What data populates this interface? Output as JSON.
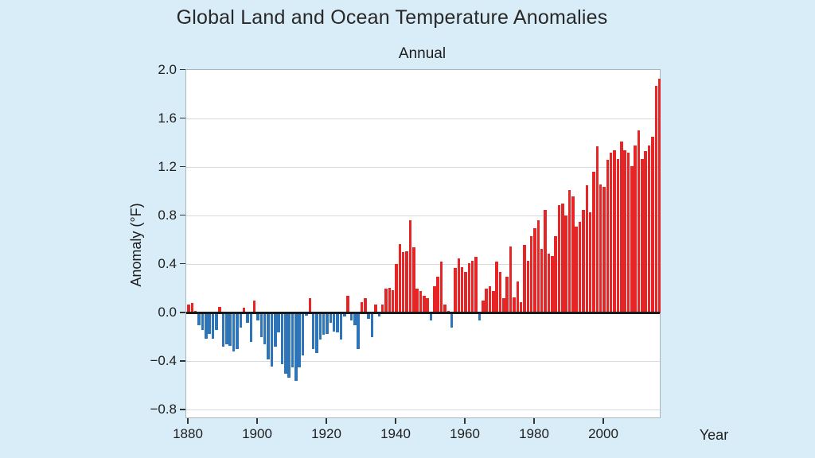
{
  "title": "Global Land and Ocean Temperature Anomalies",
  "subtitle": "Annual",
  "chart_data": {
    "type": "bar",
    "title": "Global Land and Ocean Temperature Anomalies",
    "subtitle": "Annual",
    "xlabel": "Year",
    "ylabel": "Anomaly (°F)",
    "ylim": [
      -0.86,
      2.0
    ],
    "grid": true,
    "legend": "none",
    "y_ticks": [
      2.0,
      1.6,
      1.2,
      0.8,
      0.4,
      0.0,
      -0.4,
      -0.8
    ],
    "y_tick_labels": [
      "2.0",
      "1.6",
      "1.2",
      "0.8",
      "0.4",
      "0.0",
      "−0.4",
      "−0.8"
    ],
    "x_ticks": [
      1880,
      1900,
      1920,
      1940,
      1960,
      1980,
      2000
    ],
    "x_start_year": 1880,
    "x_end_year": 2016,
    "colors": {
      "positive_bar": "#e62527",
      "negative_bar": "#2d74b9",
      "background": "#d9edf8",
      "plot_background": "#ffffff",
      "gridline": "#d4dadd",
      "zero_line": "#1a1a1a",
      "text": "#1e1e1e"
    },
    "values": [
      0.07,
      0.08,
      0.02,
      -0.1,
      -0.14,
      -0.21,
      -0.17,
      -0.21,
      -0.14,
      0.05,
      -0.28,
      -0.26,
      -0.27,
      -0.32,
      -0.3,
      -0.12,
      0.04,
      -0.08,
      -0.24,
      0.1,
      -0.06,
      -0.2,
      -0.26,
      -0.38,
      -0.44,
      -0.28,
      -0.16,
      -0.42,
      -0.5,
      -0.53,
      -0.45,
      -0.56,
      -0.45,
      -0.35,
      -0.02,
      0.12,
      -0.3,
      -0.33,
      -0.22,
      -0.18,
      -0.17,
      -0.08,
      -0.15,
      -0.16,
      -0.22,
      -0.03,
      0.14,
      -0.06,
      -0.1,
      -0.3,
      0.09,
      0.12,
      -0.05,
      -0.2,
      0.07,
      -0.03,
      0.07,
      0.2,
      0.21,
      0.19,
      0.4,
      0.57,
      0.5,
      0.51,
      0.76,
      0.54,
      0.2,
      0.18,
      0.14,
      0.12,
      -0.06,
      0.22,
      0.3,
      0.42,
      0.07,
      0.02,
      -0.12,
      0.37,
      0.45,
      0.38,
      0.34,
      0.41,
      0.43,
      0.46,
      -0.06,
      0.1,
      0.2,
      0.22,
      0.18,
      0.42,
      0.34,
      0.12,
      0.3,
      0.55,
      0.13,
      0.26,
      0.09,
      0.56,
      0.43,
      0.63,
      0.7,
      0.76,
      0.53,
      0.85,
      0.49,
      0.47,
      0.63,
      0.89,
      0.9,
      0.8,
      1.01,
      0.96,
      0.71,
      0.75,
      0.85,
      1.05,
      0.83,
      1.16,
      1.37,
      1.06,
      1.04,
      1.26,
      1.32,
      1.34,
      1.27,
      1.41,
      1.34,
      1.32,
      1.21,
      1.38,
      1.5,
      1.27,
      1.33,
      1.38,
      1.45,
      1.87,
      1.93
    ]
  }
}
